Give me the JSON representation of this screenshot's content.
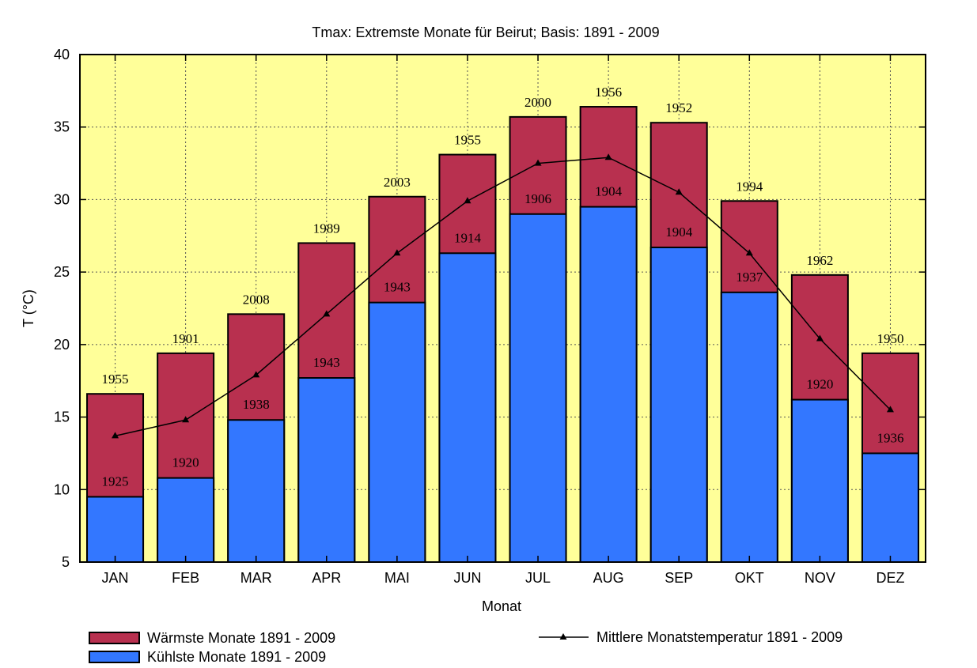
{
  "chart_data": {
    "type": "bar",
    "title": "Tmax: Extremste Monate für Beirut; Basis: 1891 - 2009",
    "xlabel": "Monat",
    "ylabel": "T (°C)",
    "ylim": [
      5,
      40
    ],
    "yticks": [
      "5",
      "10",
      "15",
      "20",
      "25",
      "30",
      "35",
      "40"
    ],
    "grid": true,
    "legend_position": "bottom",
    "categories": [
      "JAN",
      "FEB",
      "MAR",
      "APR",
      "MAI",
      "JUN",
      "JUL",
      "AUG",
      "SEP",
      "OKT",
      "NOV",
      "DEZ"
    ],
    "series": [
      {
        "name": "Wärmste Monate 1891 - 2009",
        "color": "#b8304f",
        "values": [
          16.6,
          19.4,
          22.1,
          27.0,
          30.2,
          33.1,
          35.7,
          36.4,
          35.3,
          29.9,
          24.8,
          19.4
        ],
        "year_labels": [
          "1955",
          "1901",
          "2008",
          "1989",
          "2003",
          "1955",
          "2000",
          "1956",
          "1952",
          "1994",
          "1962",
          "1950"
        ]
      },
      {
        "name": "Kühlste Monate 1891 - 2009",
        "color": "#3377ff",
        "values": [
          9.5,
          10.8,
          14.8,
          17.7,
          22.9,
          26.3,
          29.0,
          29.5,
          26.7,
          23.6,
          16.2,
          12.5
        ],
        "year_labels": [
          "1925",
          "1920",
          "1938",
          "1943",
          "1943",
          "1914",
          "1906",
          "1904",
          "1904",
          "1937",
          "1920",
          "1936"
        ]
      },
      {
        "name": "Mittlere Monatstemperatur 1891 - 2009",
        "type": "line",
        "marker": "triangle",
        "color": "#000000",
        "values": [
          13.7,
          14.8,
          17.9,
          22.1,
          26.3,
          29.9,
          32.5,
          32.9,
          30.5,
          26.3,
          20.4,
          15.5
        ]
      }
    ],
    "background_color": "#ffff99"
  }
}
